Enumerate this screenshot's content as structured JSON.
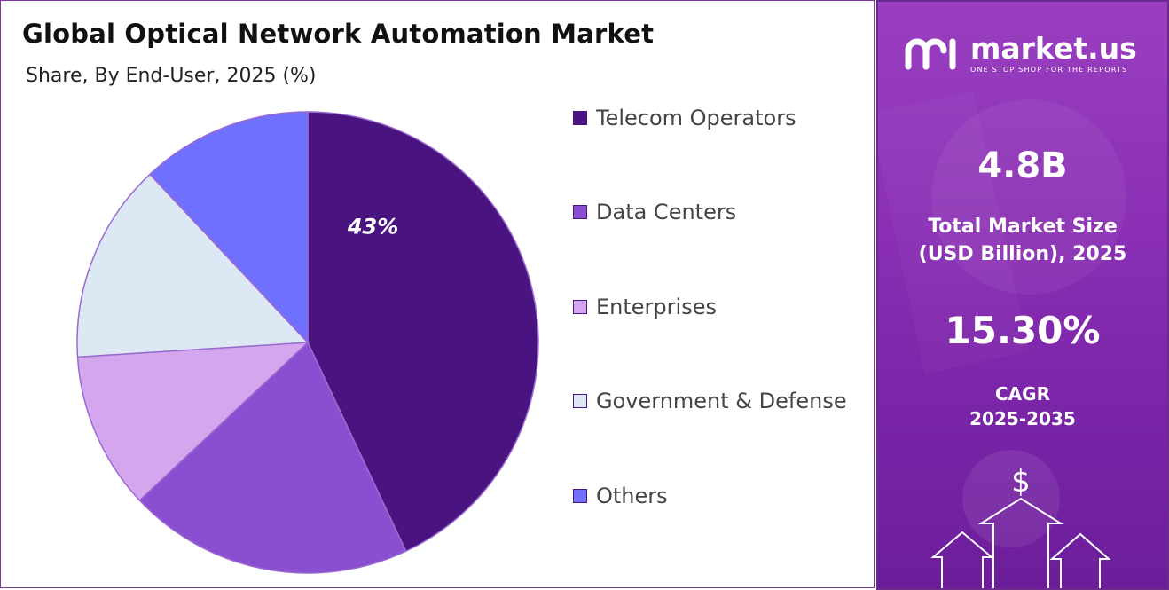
{
  "title": "Global Optical Network Automation Market",
  "subtitle": "Share, By End-User, 2025 (%)",
  "colors": {
    "telecom": "#4a1480",
    "data_centers": "#8a4fd0",
    "enterprises": "#d3a6ee",
    "government": "#dce8f4",
    "others": "#7070ff",
    "panel_bg": "#8a2fb4"
  },
  "chart_data": {
    "type": "pie",
    "title": "Global Optical Network Automation Market",
    "subtitle": "Share, By End-User, 2025 (%)",
    "categories": [
      "Telecom Operators",
      "Data Centers",
      "Enterprises",
      "Government & Defense",
      "Others"
    ],
    "values": [
      43,
      20,
      11,
      14,
      12
    ],
    "data_labels": [
      "43%",
      "",
      "",
      "",
      ""
    ],
    "legend": "right",
    "start_angle_deg": 0,
    "direction": "clockwise"
  },
  "legend": {
    "items": [
      {
        "label": "Telecom Operators"
      },
      {
        "label": "Data Centers"
      },
      {
        "label": "Enterprises"
      },
      {
        "label": "Government & Defense"
      },
      {
        "label": "Others"
      }
    ]
  },
  "brand": {
    "name": "market.us",
    "tagline": "ONE STOP SHOP FOR THE REPORTS"
  },
  "stats": {
    "market_size_value": "4.8B",
    "market_size_label_line1": "Total Market Size",
    "market_size_label_line2": "(USD Billion), 2025",
    "cagr_value": "15.30%",
    "cagr_label_line1": "CAGR",
    "cagr_label_line2": "2025-2035"
  },
  "icons": [
    "dollar-icon",
    "up-arrow-icon"
  ]
}
